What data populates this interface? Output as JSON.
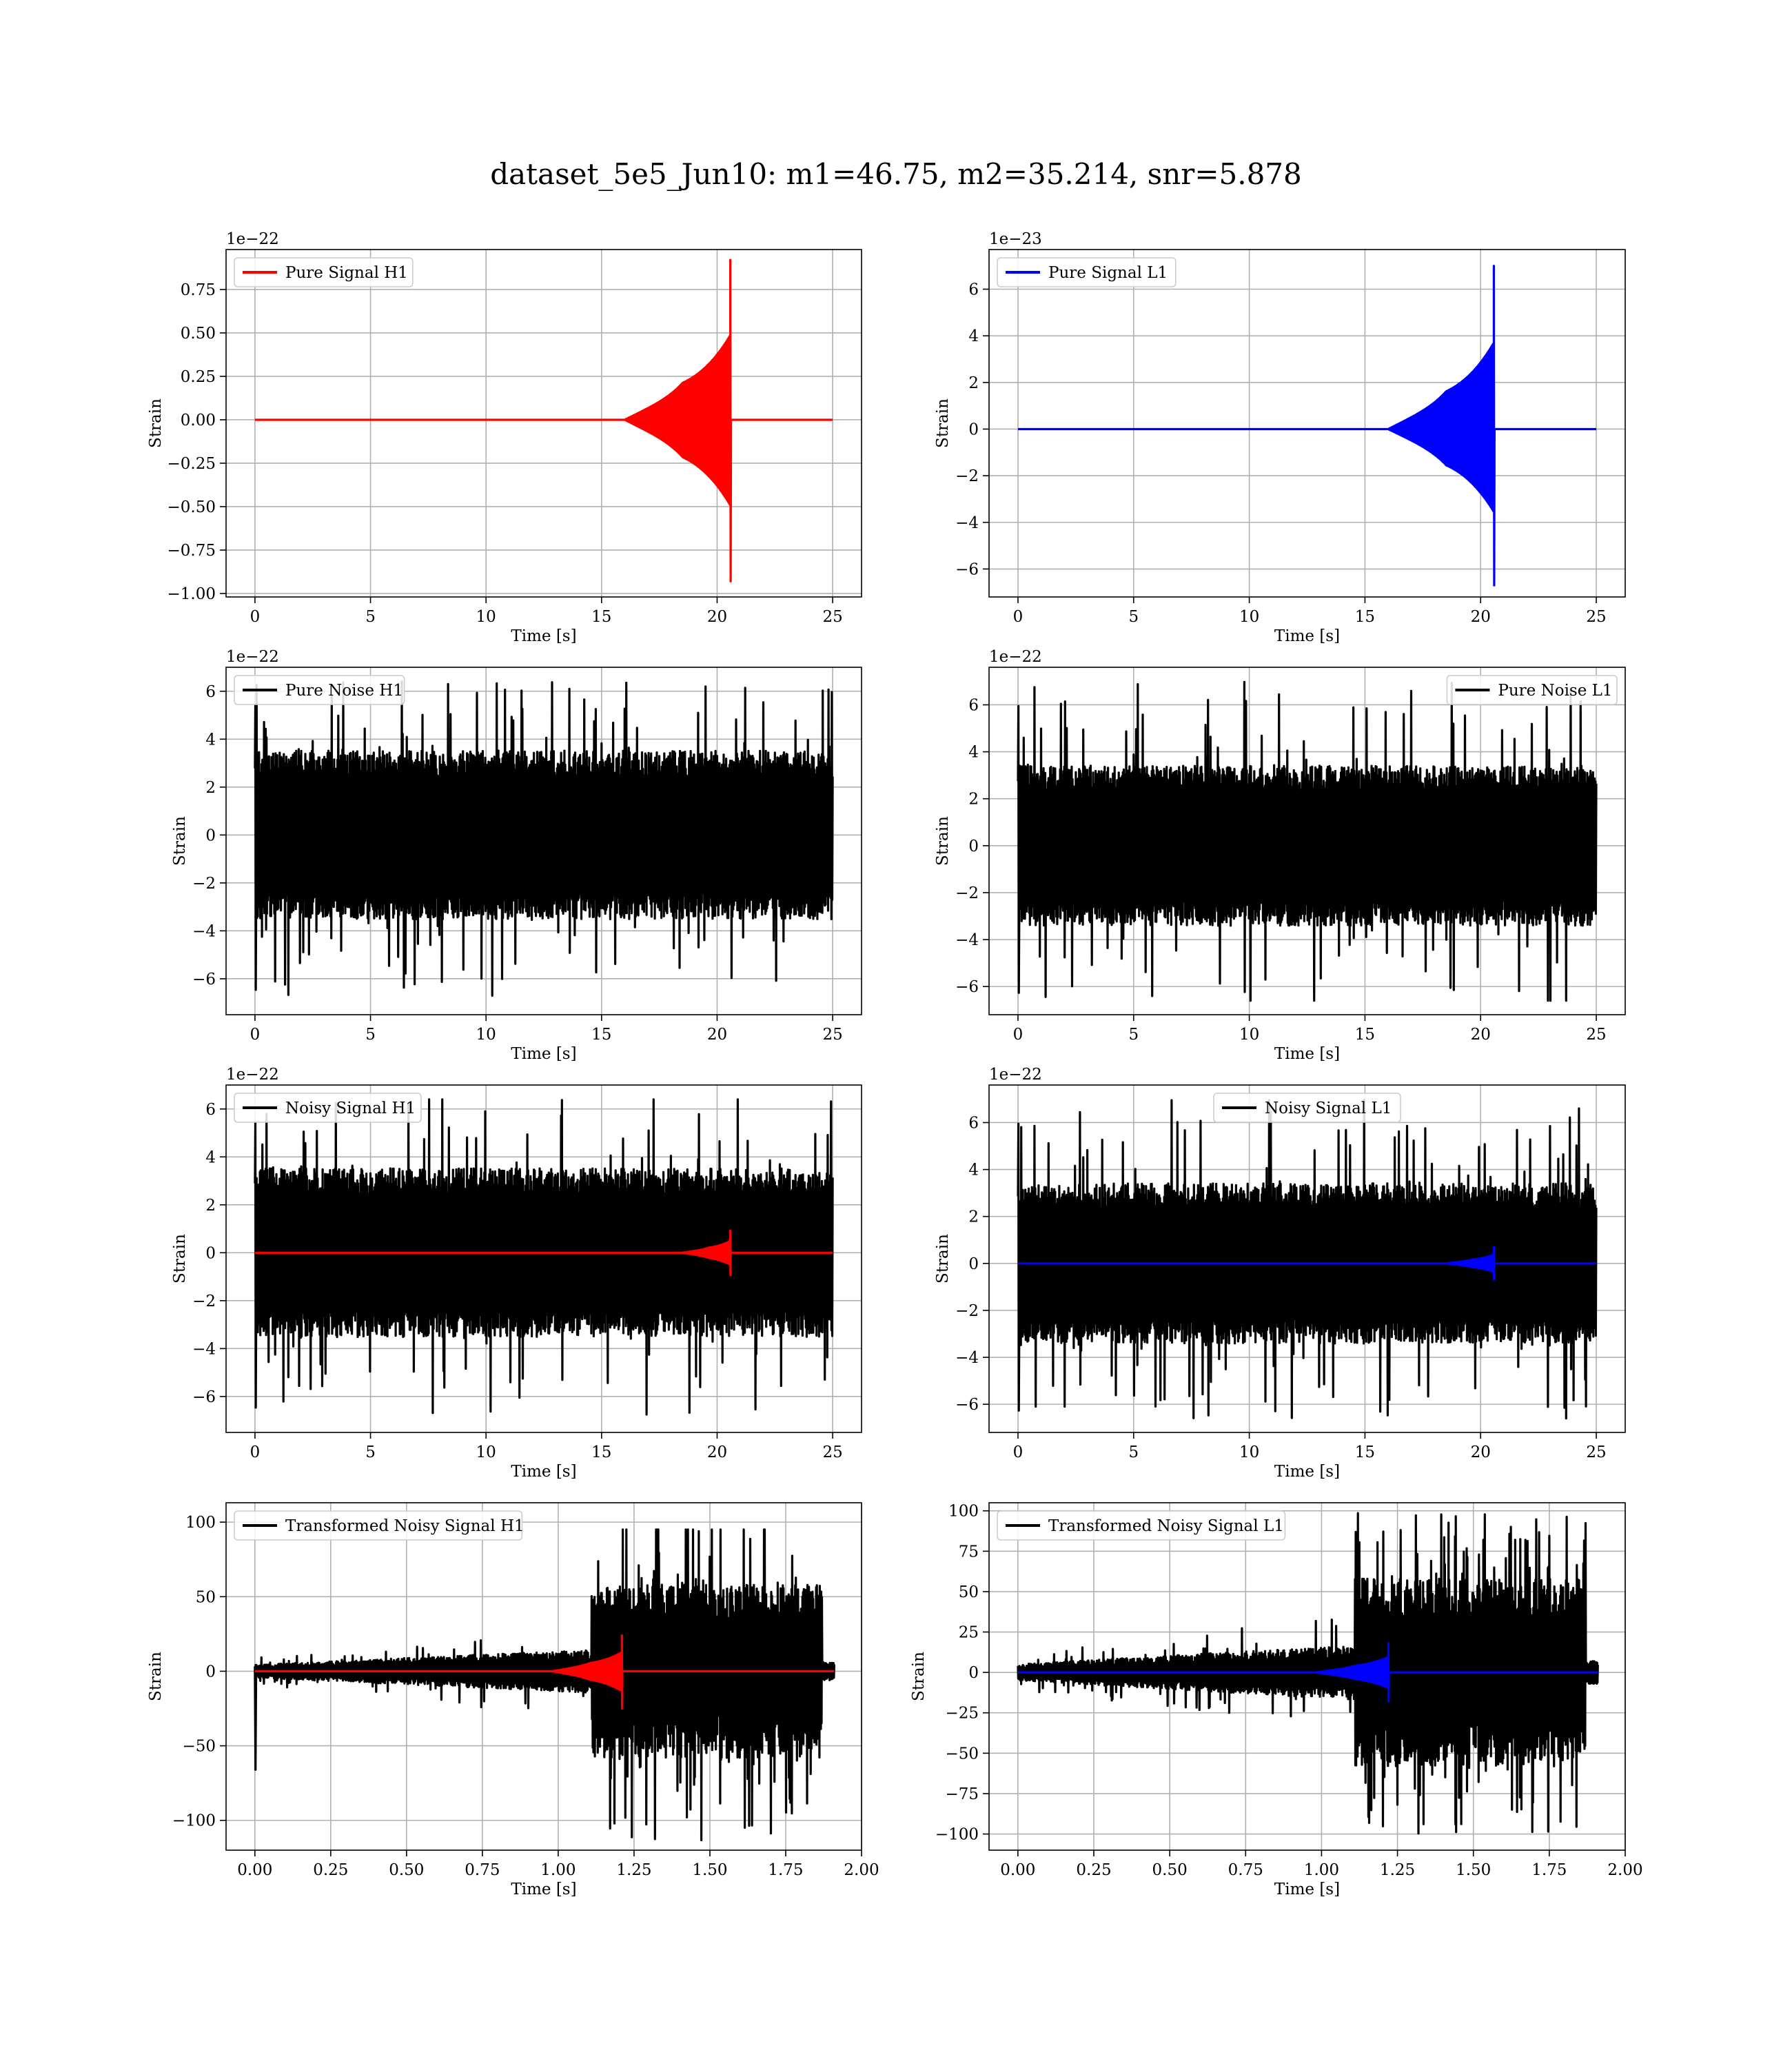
{
  "figure": {
    "title": "dataset_5e5_Jun10: m1=46.75, m2=35.214, snr=5.878"
  },
  "colors": {
    "h1_signal": "#ff0000",
    "l1_signal": "#0000ff",
    "noise": "#000000",
    "grid": "#b0b0b0"
  },
  "chart_data": [
    {
      "id": "pure-signal-h1",
      "type": "line",
      "xlabel": "Time [s]",
      "ylabel": "Strain",
      "offset_text": "1e−22",
      "xlim": [
        -1.25,
        26.25
      ],
      "ylim": [
        -1.02,
        0.98
      ],
      "xticks": [
        0,
        5,
        10,
        15,
        20,
        25
      ],
      "yticks": [
        -1.0,
        -0.75,
        -0.5,
        -0.25,
        0.0,
        0.25,
        0.5,
        0.75
      ],
      "ytick_labels": [
        "−1.00",
        "−0.75",
        "−0.50",
        "−0.25",
        "0.00",
        "0.25",
        "0.50",
        "0.75"
      ],
      "legend_position": "upper left",
      "grid": true,
      "series": [
        {
          "name": "Pure Signal H1",
          "color": "#ff0000",
          "kind": "chirp",
          "t_start": 0,
          "t_end": 25,
          "merger_time": 20.57,
          "peak": 0.92,
          "trough": -0.93,
          "inspiral_start": 16.0
        }
      ]
    },
    {
      "id": "pure-signal-l1",
      "type": "line",
      "xlabel": "Time [s]",
      "ylabel": "Strain",
      "offset_text": "1e−23",
      "xlim": [
        -1.25,
        26.25
      ],
      "ylim": [
        -7.2,
        7.7
      ],
      "xticks": [
        0,
        5,
        10,
        15,
        20,
        25
      ],
      "yticks": [
        -6,
        -4,
        -2,
        0,
        2,
        4,
        6
      ],
      "ytick_labels": [
        "−6",
        "−4",
        "−2",
        "0",
        "2",
        "4",
        "6"
      ],
      "legend_position": "upper left",
      "grid": true,
      "series": [
        {
          "name": "Pure Signal L1",
          "color": "#0000ff",
          "kind": "chirp",
          "t_start": 0,
          "t_end": 25,
          "merger_time": 20.57,
          "peak": 7.0,
          "trough": -6.7,
          "inspiral_start": 16.0
        }
      ]
    },
    {
      "id": "pure-noise-h1",
      "type": "line",
      "xlabel": "Time [s]",
      "ylabel": "Strain",
      "offset_text": "1e−22",
      "xlim": [
        -1.25,
        26.25
      ],
      "ylim": [
        -7.5,
        7.0
      ],
      "xticks": [
        0,
        5,
        10,
        15,
        20,
        25
      ],
      "yticks": [
        -6,
        -4,
        -2,
        0,
        2,
        4,
        6
      ],
      "ytick_labels": [
        "−6",
        "−4",
        "−2",
        "0",
        "2",
        "4",
        "6"
      ],
      "legend_position": "upper left",
      "grid": true,
      "series": [
        {
          "name": "Pure Noise H1",
          "color": "#000000",
          "kind": "noise",
          "t_start": 0,
          "t_end": 25,
          "max": 6.4,
          "min": -6.8,
          "band": 3.2
        }
      ]
    },
    {
      "id": "pure-noise-l1",
      "type": "line",
      "xlabel": "Time [s]",
      "ylabel": "Strain",
      "offset_text": "1e−22",
      "xlim": [
        -1.25,
        26.25
      ],
      "ylim": [
        -7.2,
        7.6
      ],
      "xticks": [
        0,
        5,
        10,
        15,
        20,
        25
      ],
      "yticks": [
        -6,
        -4,
        -2,
        0,
        2,
        4,
        6
      ],
      "ytick_labels": [
        "−6",
        "−4",
        "−2",
        "0",
        "2",
        "4",
        "6"
      ],
      "legend_position": "upper right",
      "grid": true,
      "series": [
        {
          "name": "Pure Noise L1",
          "color": "#000000",
          "kind": "noise",
          "t_start": 0,
          "t_end": 25,
          "max": 7.0,
          "min": -6.6,
          "band": 3.1
        }
      ]
    },
    {
      "id": "noisy-signal-h1",
      "type": "line",
      "xlabel": "Time [s]",
      "ylabel": "Strain",
      "offset_text": "1e−22",
      "xlim": [
        -1.25,
        26.25
      ],
      "ylim": [
        -7.5,
        7.0
      ],
      "xticks": [
        0,
        5,
        10,
        15,
        20,
        25
      ],
      "yticks": [
        -6,
        -4,
        -2,
        0,
        2,
        4,
        6
      ],
      "ytick_labels": [
        "−6",
        "−4",
        "−2",
        "0",
        "2",
        "4",
        "6"
      ],
      "legend_position": "upper left",
      "grid": true,
      "series": [
        {
          "name": "Noisy Signal H1",
          "color": "#000000",
          "kind": "noise",
          "t_start": 0,
          "t_end": 25,
          "max": 6.4,
          "min": -6.8,
          "band": 3.2
        },
        {
          "color": "#ff0000",
          "kind": "chirp",
          "t_start": 0,
          "t_end": 25,
          "merger_time": 20.57,
          "peak": 0.92,
          "trough": -0.93,
          "inspiral_start": 18.5
        }
      ]
    },
    {
      "id": "noisy-signal-l1",
      "type": "line",
      "xlabel": "Time [s]",
      "ylabel": "Strain",
      "offset_text": "1e−22",
      "xlim": [
        -1.25,
        26.25
      ],
      "ylim": [
        -7.2,
        7.6
      ],
      "xticks": [
        0,
        5,
        10,
        15,
        20,
        25
      ],
      "yticks": [
        -6,
        -4,
        -2,
        0,
        2,
        4,
        6
      ],
      "ytick_labels": [
        "−6",
        "−4",
        "−2",
        "0",
        "2",
        "4",
        "6"
      ],
      "legend_position": "upper center",
      "grid": true,
      "series": [
        {
          "name": "Noisy Signal L1",
          "color": "#000000",
          "kind": "noise",
          "t_start": 0,
          "t_end": 25,
          "max": 7.0,
          "min": -6.6,
          "band": 3.1
        },
        {
          "color": "#0000ff",
          "kind": "chirp",
          "t_start": 0,
          "t_end": 25,
          "merger_time": 20.57,
          "peak": 0.7,
          "trough": -0.67,
          "inspiral_start": 18.5
        }
      ]
    },
    {
      "id": "transformed-noisy-signal-h1",
      "type": "line",
      "xlabel": "Time [s]",
      "ylabel": "Strain",
      "offset_text": "",
      "xlim": [
        -0.095,
        2.0
      ],
      "ylim": [
        -120,
        113
      ],
      "xticks": [
        0.0,
        0.25,
        0.5,
        0.75,
        1.0,
        1.25,
        1.5,
        1.75,
        2.0
      ],
      "xtick_labels": [
        "0.00",
        "0.25",
        "0.50",
        "0.75",
        "1.00",
        "1.25",
        "1.50",
        "1.75",
        "2.00"
      ],
      "yticks": [
        -100,
        -50,
        0,
        50,
        100
      ],
      "ytick_labels": [
        "−100",
        "−50",
        "0",
        "50",
        "100"
      ],
      "legend_position": "upper left",
      "grid": true,
      "series": [
        {
          "name": "Transformed Noisy Signal H1",
          "color": "#000000",
          "kind": "transformed-noise",
          "t_start": 0,
          "t_end": 1.91,
          "burst_start": 1.11,
          "burst_end": 1.87,
          "pre_band": 6,
          "burst_max": 95,
          "burst_min": -115,
          "initial_spike": -66
        },
        {
          "color": "#ff0000",
          "kind": "transformed-chirp",
          "t_start": 0,
          "t_end": 1.91,
          "merger_time": 1.21,
          "peak": 24,
          "trough": -25,
          "inspiral_start": 0.98
        }
      ]
    },
    {
      "id": "transformed-noisy-signal-l1",
      "type": "line",
      "xlabel": "Time [s]",
      "ylabel": "Strain",
      "offset_text": "",
      "xlim": [
        -0.095,
        2.0
      ],
      "ylim": [
        -110,
        105
      ],
      "xticks": [
        0.0,
        0.25,
        0.5,
        0.75,
        1.0,
        1.25,
        1.5,
        1.75,
        2.0
      ],
      "xtick_labels": [
        "0.00",
        "0.25",
        "0.50",
        "0.75",
        "1.00",
        "1.25",
        "1.50",
        "1.75",
        "2.00"
      ],
      "yticks": [
        -100,
        -75,
        -50,
        -25,
        0,
        25,
        50,
        75,
        100
      ],
      "ytick_labels": [
        "−100",
        "−75",
        "−50",
        "−25",
        "0",
        "25",
        "50",
        "75",
        "100"
      ],
      "legend_position": "upper left",
      "grid": true,
      "series": [
        {
          "name": "Transformed Noisy Signal L1",
          "color": "#000000",
          "kind": "transformed-noise",
          "t_start": 0,
          "t_end": 1.91,
          "burst_start": 1.11,
          "burst_end": 1.87,
          "pre_band": 7,
          "burst_max": 99,
          "burst_min": -100,
          "initial_spike": 0
        },
        {
          "color": "#0000ff",
          "kind": "transformed-chirp",
          "t_start": 0,
          "t_end": 1.91,
          "merger_time": 1.22,
          "peak": 18,
          "trough": -18,
          "inspiral_start": 0.98
        }
      ]
    }
  ]
}
